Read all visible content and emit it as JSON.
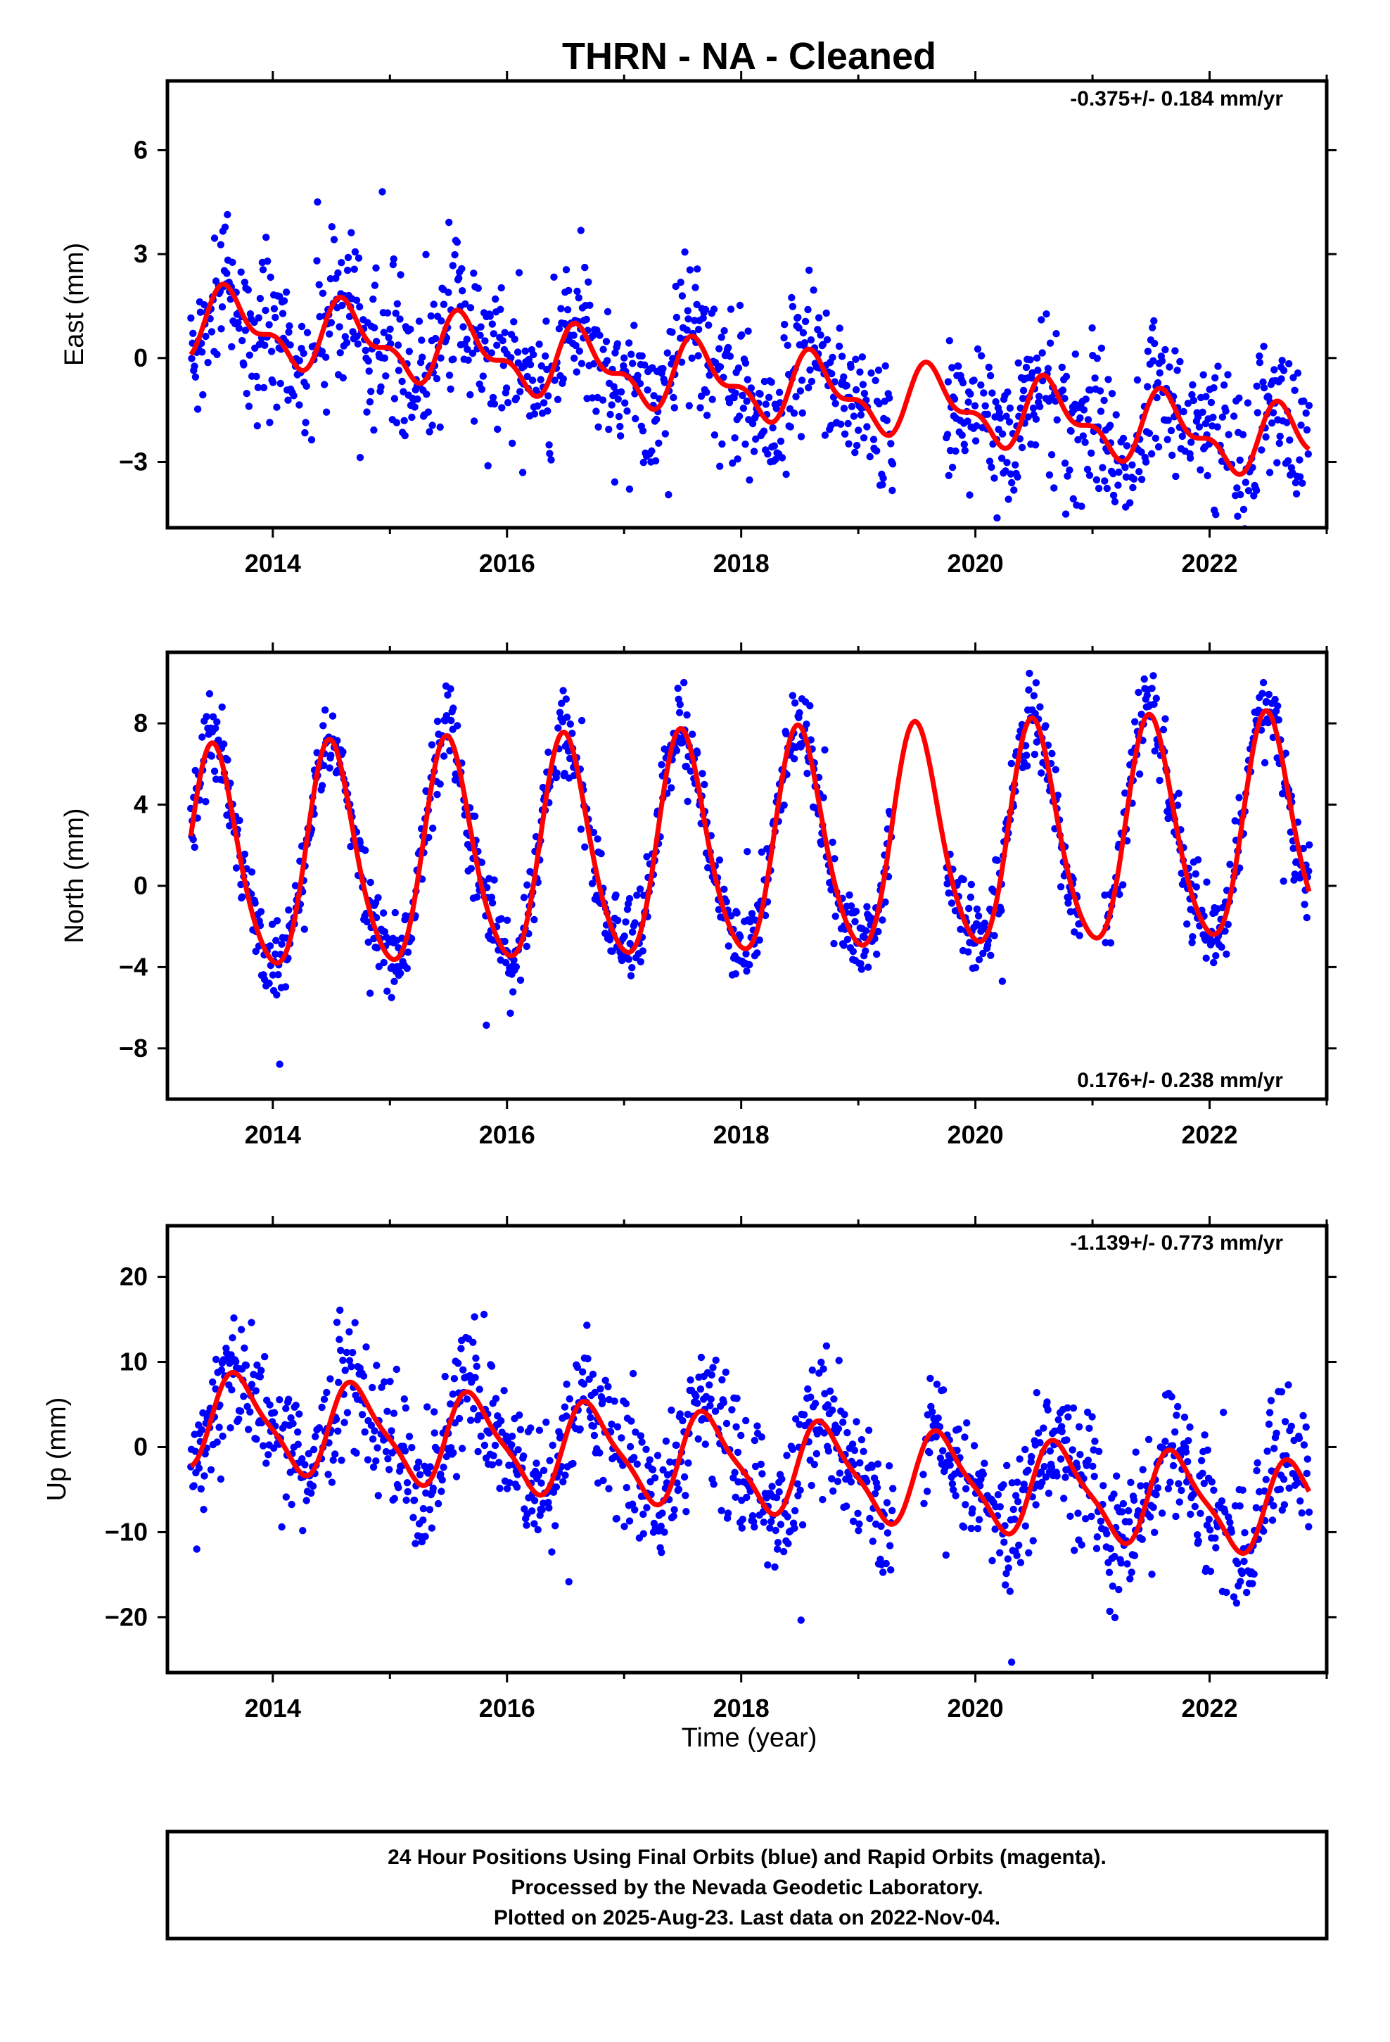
{
  "figure": {
    "title": "THRN  - NA - Cleaned",
    "xlabel": "Time (year)",
    "footer": {
      "line1": "24 Hour Positions Using Final Orbits (blue) and Rapid Orbits (magenta).",
      "line2": "Processed by the Nevada Geodetic Laboratory.",
      "line3": "Plotted on 2025-Aug-23. Last data on 2022-Nov-04."
    },
    "colors": {
      "points": "#0000ff",
      "model": "#ff0000",
      "frame": "#000000"
    }
  },
  "chart_data": [
    {
      "type": "scatter",
      "id": "east",
      "ylabel": "East (mm)",
      "rate_label": "-0.375+/- 0.184 mm/yr",
      "xlim": [
        2013.1,
        2023.0
      ],
      "ylim": [
        -4.9,
        8.0
      ],
      "xticks": [
        2014,
        2016,
        2018,
        2020,
        2022
      ],
      "yticks": [
        -3,
        0,
        3,
        6
      ],
      "ytick_labels": [
        "−3",
        "0",
        "3",
        "6"
      ],
      "trend_mm_per_yr": -0.375,
      "data_span": [
        2013.3,
        2022.85
      ],
      "gaps": [
        [
          2019.3,
          2019.75
        ]
      ],
      "model": {
        "series": "red",
        "offset": 1.05,
        "rate": -0.375,
        "annual": 0.85,
        "semiannual": 0.45,
        "annual_peak": 0.65,
        "semiannual_peak": 0.55,
        "origin": 2013.3
      },
      "scatter_sigma": 1.1
    },
    {
      "type": "scatter",
      "id": "north",
      "ylabel": "North (mm)",
      "rate_label": "0.176+/- 0.238 mm/yr",
      "xlim": [
        2013.1,
        2023.0
      ],
      "ylim": [
        -10.5,
        11.5
      ],
      "xticks": [
        2014,
        2016,
        2018,
        2020,
        2022
      ],
      "yticks": [
        -8,
        -4,
        0,
        4,
        8
      ],
      "ytick_labels": [
        "−8",
        "−4",
        "0",
        "4",
        "8"
      ],
      "trend_mm_per_yr": 0.176,
      "data_span": [
        2013.3,
        2022.85
      ],
      "gaps": [
        [
          2019.3,
          2019.75
        ],
        [
          2020.9,
          2021.1
        ]
      ],
      "model": {
        "series": "red",
        "offset": 1.0,
        "rate": 0.176,
        "annual": 5.4,
        "semiannual": 0.7,
        "annual_peak": 0.5,
        "semiannual_peak": 0.45,
        "origin": 2013.3
      },
      "scatter_sigma": 1.0
    },
    {
      "type": "scatter",
      "id": "up",
      "ylabel": "Up (mm)",
      "rate_label": "-1.139+/- 0.773 mm/yr",
      "xlim": [
        2013.1,
        2023.0
      ],
      "ylim": [
        -26.5,
        26.0
      ],
      "xticks": [
        2014,
        2016,
        2018,
        2020,
        2022
      ],
      "yticks": [
        -20,
        -10,
        0,
        10,
        20
      ],
      "ytick_labels": [
        "−20",
        "−10",
        "0",
        "10",
        "20"
      ],
      "trend_mm_per_yr": -1.139,
      "data_span": [
        2013.3,
        2022.85
      ],
      "gaps": [
        [
          2019.3,
          2019.55
        ]
      ],
      "model": {
        "series": "red",
        "offset": 3.4,
        "rate": -1.139,
        "annual": 5.2,
        "semiannual": 1.3,
        "annual_peak": 0.72,
        "semiannual_peak": 0.6,
        "origin": 2013.3
      },
      "scatter_sigma": 3.8
    }
  ]
}
